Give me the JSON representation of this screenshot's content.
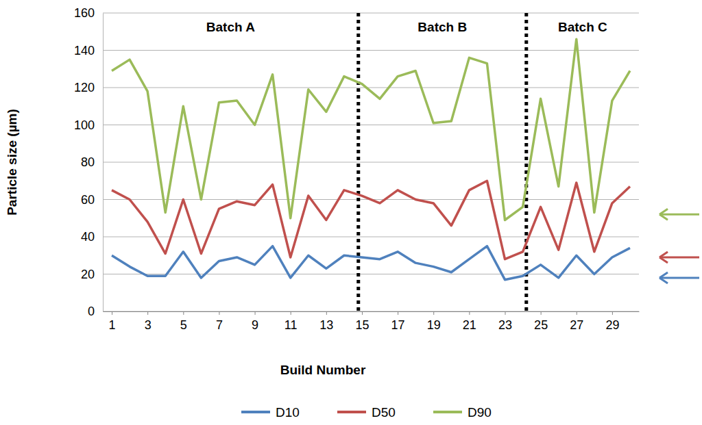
{
  "chart_data": {
    "type": "line",
    "x_label": "Build Number",
    "y_label": "Particle size (µm)",
    "x": [
      1,
      2,
      3,
      4,
      5,
      6,
      7,
      8,
      9,
      10,
      11,
      12,
      13,
      14,
      15,
      16,
      17,
      18,
      19,
      20,
      21,
      22,
      23,
      24,
      25,
      26,
      27,
      28,
      29,
      30
    ],
    "series": [
      {
        "name": "D10",
        "color": "#4f81bd",
        "arrow": 18,
        "values": [
          30,
          24,
          19,
          19,
          32,
          18,
          27,
          29,
          25,
          35,
          18,
          30,
          23,
          30,
          29,
          28,
          32,
          26,
          24,
          21,
          28,
          35,
          17,
          19,
          25,
          18,
          30,
          20,
          29,
          34
        ]
      },
      {
        "name": "D50",
        "color": "#c0504d",
        "arrow": 29,
        "values": [
          65,
          60,
          48,
          31,
          60,
          31,
          55,
          59,
          57,
          68,
          29,
          62,
          49,
          65,
          62,
          58,
          65,
          60,
          58,
          46,
          65,
          70,
          28,
          32,
          56,
          33,
          69,
          32,
          58,
          67
        ]
      },
      {
        "name": "D90",
        "color": "#9bbb59",
        "arrow": 52,
        "values": [
          129,
          135,
          118,
          53,
          110,
          60,
          112,
          113,
          100,
          127,
          50,
          119,
          107,
          126,
          122,
          114,
          126,
          129,
          101,
          102,
          136,
          133,
          49,
          56,
          114,
          67,
          146,
          53,
          113,
          129
        ]
      }
    ],
    "dividers": [
      14.8,
      24.2
    ],
    "annotations": [
      "Batch A",
      "Batch B",
      "Batch C"
    ],
    "xlim": [
      0.5,
      30.5
    ],
    "xticks": [
      1,
      3,
      5,
      7,
      9,
      11,
      13,
      15,
      17,
      19,
      21,
      23,
      25,
      27,
      29
    ],
    "ylim": [
      0,
      160
    ],
    "yticks": [
      0,
      20,
      40,
      60,
      80,
      100,
      120,
      140,
      160
    ],
    "grid": true,
    "legend": "bottom"
  }
}
